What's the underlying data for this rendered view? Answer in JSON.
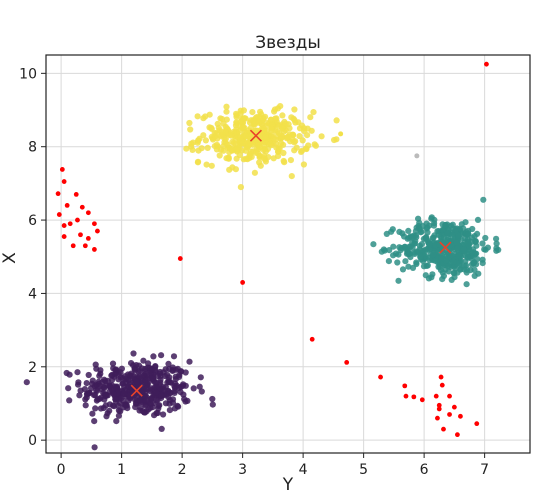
{
  "chart_data": {
    "type": "scatter",
    "title": "Звезды",
    "xlabel": "Y",
    "ylabel": "X",
    "xlim": [
      -0.25,
      7.75
    ],
    "ylim": [
      -0.35,
      10.5
    ],
    "x_ticks": [
      0,
      1,
      2,
      3,
      4,
      5,
      6,
      7
    ],
    "y_ticks": [
      0,
      2,
      4,
      6,
      8,
      10
    ],
    "grid": true,
    "colors": {
      "cluster_purple": "#3f1d5a",
      "cluster_yellow": "#f2e14a",
      "cluster_teal": "#2f8f86",
      "noise": "#ff0000",
      "centroid": "#e8432a",
      "grid": "#d9d9d9",
      "axis": "#222222"
    },
    "clusters": [
      {
        "color_key": "cluster_purple",
        "center": [
          1.25,
          1.4
        ],
        "spread": [
          0.45,
          0.38
        ],
        "count": 420
      },
      {
        "color_key": "cluster_yellow",
        "center": [
          3.2,
          8.25
        ],
        "spread": [
          0.45,
          0.35
        ],
        "count": 380
      },
      {
        "color_key": "cluster_teal",
        "center": [
          6.35,
          5.25
        ],
        "spread": [
          0.38,
          0.38
        ],
        "count": 420
      }
    ],
    "centroids": [
      [
        1.25,
        1.35
      ],
      [
        3.22,
        8.3
      ],
      [
        6.35,
        5.25
      ]
    ],
    "outliers": [
      [
        0.02,
        7.38
      ],
      [
        0.05,
        7.05
      ],
      [
        -0.05,
        6.72
      ],
      [
        0.1,
        6.4
      ],
      [
        -0.03,
        6.15
      ],
      [
        0.15,
        5.9
      ],
      [
        0.05,
        5.55
      ],
      [
        0.2,
        5.3
      ],
      [
        0.32,
        5.6
      ],
      [
        0.4,
        5.3
      ],
      [
        0.27,
        6.0
      ],
      [
        0.35,
        6.35
      ],
      [
        0.45,
        6.2
      ],
      [
        0.55,
        5.9
      ],
      [
        0.6,
        5.7
      ],
      [
        0.45,
        5.5
      ],
      [
        0.25,
        6.7
      ],
      [
        0.55,
        5.2
      ],
      [
        0.05,
        5.85
      ],
      [
        1.97,
        4.95
      ],
      [
        3.0,
        4.3
      ],
      [
        4.15,
        2.75
      ],
      [
        4.72,
        2.12
      ],
      [
        5.28,
        1.72
      ],
      [
        5.68,
        1.48
      ],
      [
        5.7,
        1.2
      ],
      [
        5.83,
        1.18
      ],
      [
        5.97,
        1.1
      ],
      [
        6.28,
        1.72
      ],
      [
        6.2,
        1.2
      ],
      [
        6.25,
        0.95
      ],
      [
        6.25,
        0.85
      ],
      [
        6.3,
        1.5
      ],
      [
        6.42,
        1.2
      ],
      [
        6.5,
        0.9
      ],
      [
        6.6,
        0.65
      ],
      [
        6.55,
        0.15
      ],
      [
        6.22,
        0.6
      ],
      [
        6.32,
        0.3
      ],
      [
        6.87,
        0.45
      ],
      [
        7.03,
        10.25
      ],
      [
        6.42,
        0.7
      ]
    ],
    "stray_points": [
      [
        5.88,
        7.75
      ],
      [
        4.62,
        8.35
      ]
    ]
  }
}
